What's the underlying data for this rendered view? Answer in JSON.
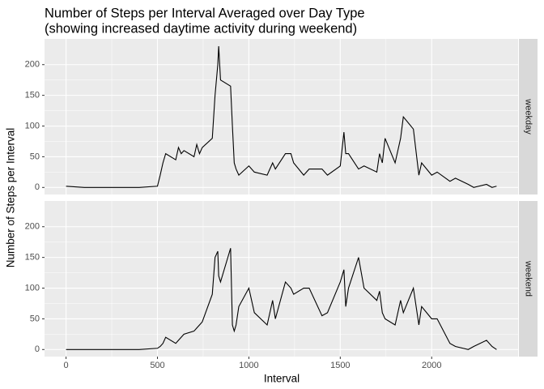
{
  "chart_data": {
    "type": "line",
    "title": "Number of Steps per Interval Averaged over Day Type",
    "subtitle": "(showing increased daytime activity during weekend)",
    "x_label": "Interval",
    "y_label": "Number of Steps per Interval",
    "xlim": [
      -117.75,
      2472.75
    ],
    "xticks": [
      0,
      500,
      1000,
      1500,
      2000
    ],
    "ylim": [
      -11.5,
      241.9
    ],
    "yticks": [
      0,
      50,
      100,
      150,
      200
    ],
    "grid": true,
    "facets": true,
    "x": [
      0,
      100,
      200,
      300,
      400,
      500,
      515,
      530,
      545,
      600,
      615,
      630,
      645,
      700,
      715,
      730,
      745,
      800,
      815,
      830,
      835,
      845,
      900,
      910,
      920,
      930,
      945,
      1000,
      1030,
      1100,
      1130,
      1145,
      1200,
      1230,
      1245,
      1300,
      1330,
      1400,
      1430,
      1500,
      1520,
      1530,
      1545,
      1600,
      1630,
      1700,
      1715,
      1730,
      1745,
      1800,
      1830,
      1845,
      1900,
      1930,
      1945,
      2000,
      2030,
      2100,
      2130,
      2200,
      2230,
      2300,
      2330,
      2355
    ],
    "series": [
      {
        "name": "weekday",
        "color": "#000000",
        "values": [
          2,
          0,
          0,
          0,
          0,
          2,
          20,
          40,
          55,
          45,
          65,
          55,
          60,
          50,
          70,
          55,
          65,
          80,
          150,
          200,
          230,
          175,
          165,
          100,
          40,
          30,
          20,
          35,
          25,
          20,
          40,
          30,
          55,
          55,
          40,
          20,
          30,
          30,
          20,
          35,
          90,
          55,
          55,
          30,
          35,
          25,
          55,
          40,
          80,
          40,
          80,
          115,
          95,
          20,
          40,
          20,
          25,
          10,
          15,
          5,
          0,
          5,
          0,
          2
        ]
      },
      {
        "name": "weekend",
        "color": "#000000",
        "values": [
          0,
          0,
          0,
          0,
          0,
          2,
          5,
          10,
          20,
          10,
          15,
          20,
          25,
          30,
          35,
          40,
          45,
          90,
          150,
          160,
          120,
          110,
          165,
          40,
          30,
          40,
          70,
          100,
          60,
          40,
          80,
          50,
          110,
          100,
          90,
          100,
          100,
          55,
          60,
          110,
          130,
          70,
          100,
          150,
          100,
          80,
          95,
          60,
          50,
          40,
          80,
          60,
          100,
          40,
          70,
          50,
          50,
          10,
          5,
          0,
          5,
          15,
          5,
          0
        ]
      }
    ]
  }
}
